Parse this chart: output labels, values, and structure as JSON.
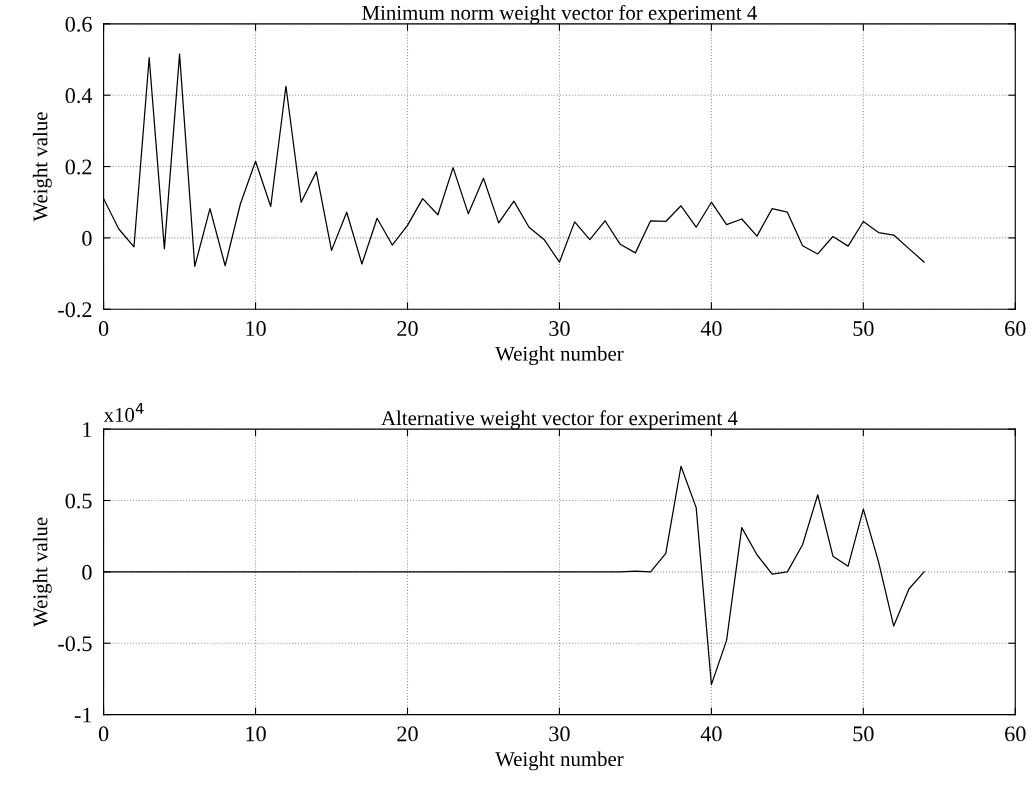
{
  "chart_data": [
    {
      "type": "line",
      "title": "Minimum norm weight vector for experiment 4",
      "xlabel": "Weight number",
      "ylabel": "Weight value",
      "x": [
        0,
        1,
        2,
        3,
        4,
        5,
        6,
        7,
        8,
        9,
        10,
        11,
        12,
        13,
        14,
        15,
        16,
        17,
        18,
        19,
        20,
        21,
        22,
        23,
        24,
        25,
        26,
        27,
        28,
        29,
        30,
        31,
        32,
        33,
        34,
        35,
        36,
        37,
        38,
        39,
        40,
        41,
        42,
        43,
        44,
        45,
        46,
        47,
        48,
        49,
        50,
        51,
        52,
        53,
        54
      ],
      "series": [
        {
          "color": "#000000",
          "values": [
            0.11,
            0.025,
            -0.025,
            0.505,
            -0.03,
            0.515,
            -0.08,
            0.082,
            -0.078,
            0.095,
            0.215,
            0.088,
            0.425,
            0.1,
            0.185,
            -0.035,
            0.072,
            -0.073,
            0.055,
            -0.02,
            0.035,
            0.11,
            0.065,
            0.197,
            0.068,
            0.167,
            0.042,
            0.103,
            0.03,
            -0.005,
            -0.068,
            0.045,
            -0.005,
            0.048,
            -0.018,
            -0.042,
            0.048,
            0.046,
            0.09,
            0.03,
            0.1,
            0.037,
            0.053,
            0.005,
            0.082,
            0.072,
            -0.022,
            -0.045,
            0.004,
            -0.023,
            0.046,
            0.015,
            0.008,
            -0.03,
            -0.068
          ]
        }
      ],
      "xlim": [
        0,
        60
      ],
      "xticks": [
        0,
        10,
        20,
        30,
        40,
        50,
        60
      ],
      "ylim": [
        -0.2,
        0.6
      ],
      "yticks": [
        -0.2,
        0,
        0.2,
        0.4,
        0.6
      ],
      "grid": true
    },
    {
      "type": "line",
      "title": "Alternative weight vector for experiment 4",
      "xlabel": "Weight number",
      "ylabel": "Weight value",
      "annotations": [
        "x10$^{4}$"
      ],
      "x": [
        0,
        1,
        2,
        3,
        4,
        5,
        6,
        7,
        8,
        9,
        10,
        11,
        12,
        13,
        14,
        15,
        16,
        17,
        18,
        19,
        20,
        21,
        22,
        23,
        24,
        25,
        26,
        27,
        28,
        29,
        30,
        31,
        32,
        33,
        34,
        35,
        36,
        37,
        38,
        39,
        40,
        41,
        42,
        43,
        44,
        45,
        46,
        47,
        48,
        49,
        50,
        51,
        52,
        53,
        54
      ],
      "series": [
        {
          "color": "#000000",
          "values": [
            0,
            0,
            0,
            0,
            0,
            0,
            0,
            0,
            0,
            0,
            0,
            0,
            0,
            0,
            0,
            0,
            0,
            0,
            0,
            0,
            0,
            0,
            0,
            0,
            0,
            0,
            0,
            0,
            0,
            0,
            0,
            0,
            0,
            0,
            0,
            0.005,
            0,
            0.13,
            0.74,
            0.45,
            -0.79,
            -0.48,
            0.31,
            0.12,
            -0.015,
            0,
            0.19,
            0.54,
            0.11,
            0.04,
            0.44,
            0.07,
            -0.38,
            -0.12,
            0
          ]
        }
      ],
      "xlim": [
        0,
        60
      ],
      "xticks": [
        0,
        10,
        20,
        30,
        40,
        50,
        60
      ],
      "ylim": [
        -1,
        1
      ],
      "yticks": [
        -1,
        -0.5,
        0,
        0.5,
        1
      ],
      "grid": true
    }
  ]
}
